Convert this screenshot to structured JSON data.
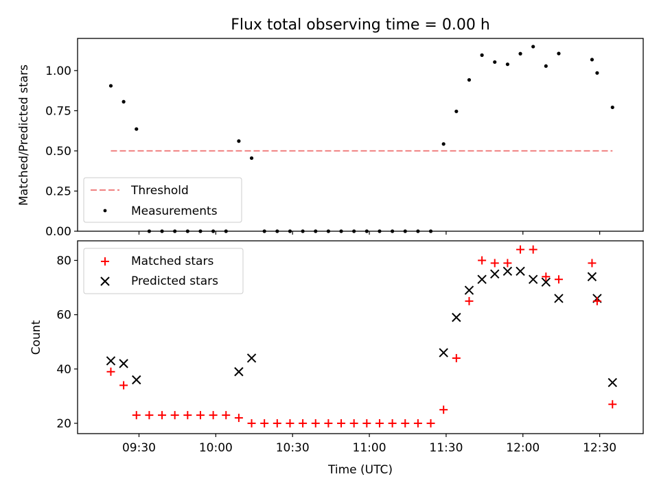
{
  "figure": {
    "title": "Flux total observing time = 0.00 h",
    "xlabel": "Time (UTC)"
  },
  "colors": {
    "threshold": "#f08080",
    "measurement": "#000000",
    "matched": "#ff0000",
    "predicted": "#000000"
  },
  "chart_data": [
    {
      "type": "scatter",
      "title": "Flux total observing time = 0.00 h",
      "xlabel": "",
      "ylabel": "Matched/Predicted stars",
      "xlim": [
        "09:06",
        "12:47"
      ],
      "ylim": [
        0,
        1.2
      ],
      "xticks": [
        "09:30",
        "10:00",
        "10:30",
        "11:00",
        "11:30",
        "12:00",
        "12:30"
      ],
      "yticks": [
        "0.00",
        "0.25",
        "0.50",
        "0.75",
        "1.00"
      ],
      "legend_position": "lower-left",
      "series": [
        {
          "name": "Threshold",
          "kind": "line",
          "style": "dashed",
          "x": [
            "09:19",
            "12:35"
          ],
          "y": [
            0.5,
            0.5
          ]
        },
        {
          "name": "Measurements",
          "kind": "points",
          "x": [
            "09:19",
            "09:24",
            "09:29",
            "09:34",
            "09:39",
            "09:44",
            "09:49",
            "09:54",
            "09:59",
            "10:04",
            "10:09",
            "10:14",
            "10:19",
            "10:24",
            "10:29",
            "10:34",
            "10:39",
            "10:44",
            "10:49",
            "10:54",
            "10:59",
            "11:04",
            "11:09",
            "11:14",
            "11:19",
            "11:24",
            "11:29",
            "11:34",
            "11:39",
            "11:44",
            "11:49",
            "11:54",
            "11:59",
            "12:04",
            "12:09",
            "12:14",
            "12:27",
            "12:29",
            "12:35"
          ],
          "y": [
            0.905,
            0.806,
            0.636,
            0.0,
            0.0,
            0.0,
            0.0,
            0.0,
            0.0,
            0.0,
            0.561,
            0.455,
            0.0,
            0.0,
            0.0,
            0.0,
            0.0,
            0.0,
            0.0,
            0.0,
            0.0,
            0.0,
            0.0,
            0.0,
            0.0,
            0.0,
            0.543,
            0.746,
            0.942,
            1.096,
            1.053,
            1.039,
            1.105,
            1.149,
            1.028,
            1.106,
            1.068,
            0.985,
            0.771
          ]
        }
      ]
    },
    {
      "type": "scatter",
      "title": "",
      "xlabel": "Time (UTC)",
      "ylabel": "Count",
      "xlim": [
        "09:06",
        "12:47"
      ],
      "ylim": [
        16.2,
        87.2
      ],
      "xticks": [
        "09:30",
        "10:00",
        "10:30",
        "11:00",
        "11:30",
        "12:00",
        "12:30"
      ],
      "yticks": [
        "20",
        "40",
        "60",
        "80"
      ],
      "legend_position": "upper-left",
      "series": [
        {
          "name": "Matched stars",
          "marker": "plus",
          "x": [
            "09:19",
            "09:24",
            "09:29",
            "09:34",
            "09:39",
            "09:44",
            "09:49",
            "09:54",
            "09:59",
            "10:04",
            "10:09",
            "10:14",
            "10:19",
            "10:24",
            "10:29",
            "10:34",
            "10:39",
            "10:44",
            "10:49",
            "10:54",
            "10:59",
            "11:04",
            "11:09",
            "11:14",
            "11:19",
            "11:24",
            "11:29",
            "11:34",
            "11:39",
            "11:44",
            "11:49",
            "11:54",
            "11:59",
            "12:04",
            "12:09",
            "12:14",
            "12:27",
            "12:29",
            "12:35"
          ],
          "y": [
            39,
            34,
            23,
            23,
            23,
            23,
            23,
            23,
            23,
            23,
            22,
            20,
            20,
            20,
            20,
            20,
            20,
            20,
            20,
            20,
            20,
            20,
            20,
            20,
            20,
            20,
            25,
            44,
            65,
            80,
            79,
            79,
            84,
            84,
            74,
            73,
            79,
            65,
            27
          ]
        },
        {
          "name": "Predicted stars",
          "marker": "x",
          "x": [
            "09:19",
            "09:24",
            "09:29",
            "10:09",
            "10:14",
            "11:29",
            "11:34",
            "11:39",
            "11:44",
            "11:49",
            "11:54",
            "11:59",
            "12:04",
            "12:09",
            "12:14",
            "12:27",
            "12:29",
            "12:35"
          ],
          "y": [
            43,
            42,
            36,
            39,
            44,
            46,
            59,
            69,
            73,
            75,
            76,
            76,
            73,
            72,
            66,
            74,
            66,
            35
          ]
        }
      ]
    }
  ]
}
